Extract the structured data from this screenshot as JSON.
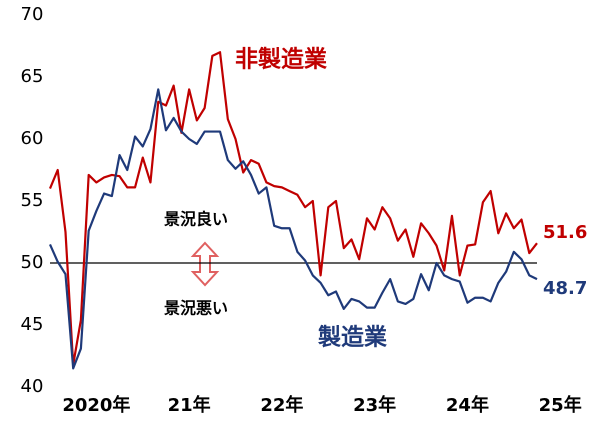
{
  "chart_data": {
    "type": "line",
    "x": [
      2020,
      2020.083,
      2020.167,
      2020.25,
      2020.333,
      2020.417,
      2020.5,
      2020.583,
      2020.667,
      2020.75,
      2020.833,
      2020.917,
      2021,
      2021.083,
      2021.167,
      2021.25,
      2021.333,
      2021.417,
      2021.5,
      2021.583,
      2021.667,
      2021.75,
      2021.833,
      2021.917,
      2022,
      2022.083,
      2022.167,
      2022.25,
      2022.333,
      2022.417,
      2022.5,
      2022.583,
      2022.667,
      2022.75,
      2022.833,
      2022.917,
      2023,
      2023.083,
      2023.167,
      2023.25,
      2023.333,
      2023.417,
      2023.5,
      2023.583,
      2023.667,
      2023.75,
      2023.833,
      2023.917,
      2024,
      2024.083,
      2024.167,
      2024.25,
      2024.333,
      2024.417,
      2024.5,
      2024.583,
      2024.667,
      2024.75,
      2024.833,
      2024.917,
      2025,
      2025.083,
      2025.167,
      2025.25
    ],
    "series": [
      {
        "name": "非製造業",
        "color": "#c00000",
        "values": [
          56,
          57.5,
          52.5,
          41.8,
          45.4,
          57.1,
          56.5,
          56.9,
          57.1,
          57,
          56.1,
          56.1,
          58.5,
          56.5,
          63,
          62.7,
          64.3,
          60.5,
          64,
          61.5,
          62.5,
          66.7,
          67,
          61.6,
          60,
          57.3,
          58.3,
          58,
          56.5,
          56.2,
          56.1,
          55.8,
          55.5,
          54.5,
          55,
          49,
          54.5,
          55,
          51.2,
          51.9,
          50.3,
          53.6,
          52.7,
          54.5,
          53.6,
          51.8,
          52.7,
          50.5,
          53.2,
          52.4,
          51.4,
          49.4,
          53.8,
          49,
          51.4,
          51.5,
          54.9,
          55.8,
          52.4,
          54,
          52.8,
          53.5,
          50.8,
          51.6
        ]
      },
      {
        "name": "製造業",
        "color": "#1f3a7a",
        "values": [
          51.5,
          50.1,
          49.1,
          41.5,
          43.1,
          52.6,
          54.2,
          55.6,
          55.4,
          58.7,
          57.5,
          60.2,
          59.4,
          60.8,
          64,
          60.7,
          61.7,
          60.6,
          60,
          59.6,
          60.6,
          60.6,
          60.6,
          58.3,
          57.6,
          58.2,
          57.1,
          55.6,
          56.1,
          53,
          52.8,
          52.8,
          50.9,
          50.2,
          49,
          48.4,
          47.4,
          47.7,
          46.3,
          47.1,
          46.9,
          46.4,
          46.4,
          47.6,
          48.7,
          46.9,
          46.7,
          47.1,
          49.1,
          47.8,
          50,
          49,
          48.7,
          48.5,
          46.8,
          47.2,
          47.2,
          46.9,
          48.4,
          49.3,
          50.9,
          50.3,
          49,
          48.7
        ]
      }
    ],
    "xlim": [
      2020,
      2025.25
    ],
    "xticks": [
      {
        "value": 2020.5,
        "label": "2020年"
      },
      {
        "value": 2021.5,
        "label": "21年"
      },
      {
        "value": 2022.5,
        "label": "22年"
      },
      {
        "value": 2023.5,
        "label": "23年"
      },
      {
        "value": 2024.5,
        "label": "24年"
      },
      {
        "value": 2025.5,
        "label": "25年"
      }
    ],
    "ylim": [
      40,
      70
    ],
    "yticks": [
      40,
      45,
      50,
      55,
      60,
      65,
      70
    ],
    "reference_line": 50,
    "annotations": {
      "upper": "景況良い",
      "lower": "景況悪い"
    }
  }
}
